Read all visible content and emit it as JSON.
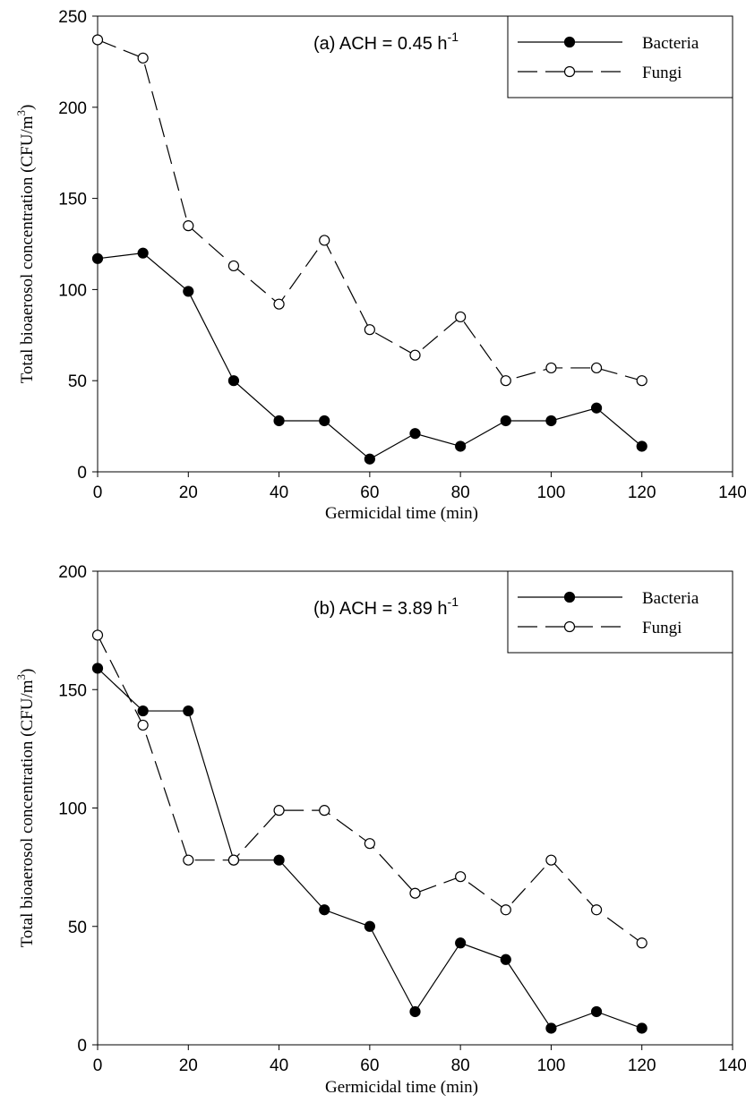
{
  "chart_data": [
    {
      "type": "line",
      "title": "(a) ACH = 0.45 h",
      "title_sup": "-1",
      "xlabel": "Germicidal time (min)",
      "ylabel": "Total bioaerosol concentration (CFU/m",
      "ylabel_sup": "3",
      "ylabel_close": ")",
      "xlim": [
        0,
        140
      ],
      "ylim": [
        0,
        250
      ],
      "xticks": [
        0,
        20,
        40,
        60,
        80,
        100,
        120,
        140
      ],
      "yticks": [
        0,
        50,
        100,
        150,
        200,
        250
      ],
      "grid": false,
      "legend_position": "top-right",
      "x": [
        0,
        10,
        20,
        30,
        40,
        50,
        60,
        70,
        80,
        90,
        100,
        110,
        120
      ],
      "series": [
        {
          "name": "Bacteria",
          "style": "solid",
          "marker": "filled-circle",
          "values": [
            117,
            120,
            99,
            50,
            28,
            28,
            7,
            21,
            14,
            28,
            28,
            35,
            14
          ]
        },
        {
          "name": "Fungi",
          "style": "dashed",
          "marker": "open-circle",
          "values": [
            237,
            227,
            135,
            113,
            92,
            127,
            78,
            64,
            85,
            50,
            57,
            57,
            50
          ]
        }
      ]
    },
    {
      "type": "line",
      "title": "(b) ACH = 3.89 h",
      "title_sup": "-1",
      "xlabel": "Germicidal time (min)",
      "ylabel": "Total bioaerosol concentration (CFU/m",
      "ylabel_sup": "3",
      "ylabel_close": ")",
      "xlim": [
        0,
        140
      ],
      "ylim": [
        0,
        200
      ],
      "xticks": [
        0,
        20,
        40,
        60,
        80,
        100,
        120,
        140
      ],
      "yticks": [
        0,
        50,
        100,
        150,
        200
      ],
      "grid": false,
      "legend_position": "top-right",
      "x": [
        0,
        10,
        20,
        30,
        40,
        50,
        60,
        70,
        80,
        90,
        100,
        110,
        120
      ],
      "series": [
        {
          "name": "Bacteria",
          "style": "solid",
          "marker": "filled-circle",
          "values": [
            159,
            141,
            141,
            78,
            78,
            57,
            50,
            14,
            43,
            36,
            7,
            14,
            7
          ]
        },
        {
          "name": "Fungi",
          "style": "dashed",
          "marker": "open-circle",
          "values": [
            173,
            135,
            78,
            78,
            99,
            99,
            85,
            64,
            71,
            57,
            78,
            57,
            43
          ]
        }
      ]
    }
  ]
}
